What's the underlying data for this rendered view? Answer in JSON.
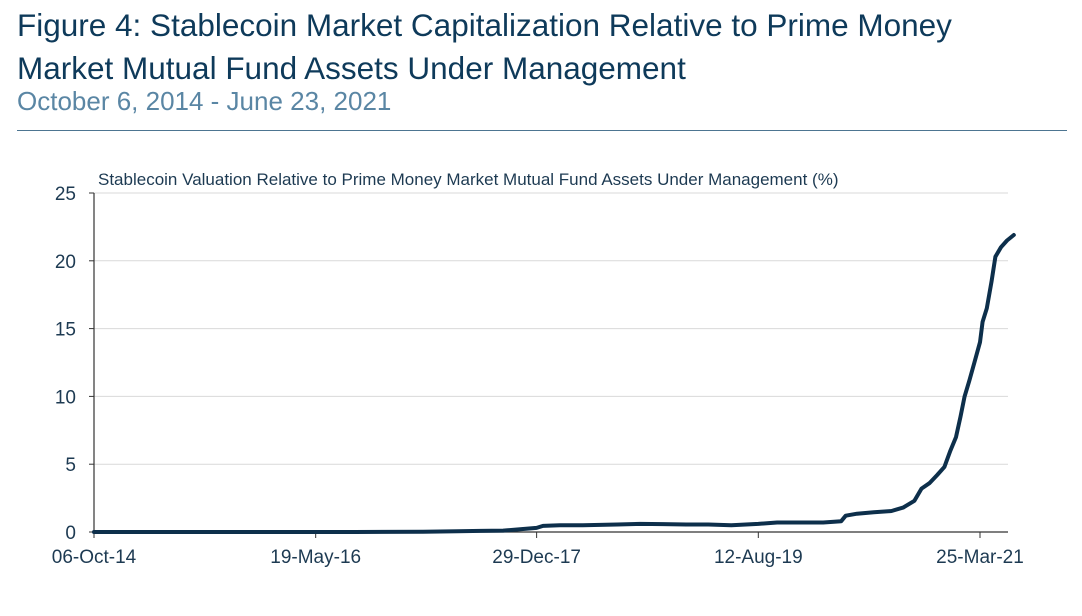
{
  "figure": {
    "title_line1": "Figure 4:  Stablecoin Market Capitalization Relative to Prime Money",
    "title_line2": "Market Mutual Fund Assets Under Management",
    "subtitle": "October 6, 2014 - June 23, 2021"
  },
  "colors": {
    "title": "#0e3a5a",
    "subtitle": "#5a86a4",
    "line": "#0d2f4b",
    "grid": "#d9d9d9"
  },
  "chart_data": {
    "type": "line",
    "title": "Stablecoin Valuation Relative to Prime Money Market Mutual Fund Assets Under Management (%)",
    "x_range": [
      "2014-10-06",
      "2021-06-23"
    ],
    "x_ticks": [
      "06-Oct-14",
      "19-May-16",
      "29-Dec-17",
      "12-Aug-19",
      "25-Mar-21"
    ],
    "x_tick_dates": [
      "2014-10-06",
      "2016-05-19",
      "2017-12-29",
      "2019-08-12",
      "2021-03-25"
    ],
    "ylim": [
      0,
      25
    ],
    "y_ticks": [
      0,
      5,
      10,
      15,
      20,
      25
    ],
    "grid": "horizontal",
    "series": [
      {
        "points": [
          [
            "2014-10-06",
            0.0
          ],
          [
            "2015-06-01",
            0.0
          ],
          [
            "2016-01-01",
            0.0
          ],
          [
            "2016-09-01",
            0.0
          ],
          [
            "2017-03-01",
            0.02
          ],
          [
            "2017-06-01",
            0.05
          ],
          [
            "2017-08-01",
            0.08
          ],
          [
            "2017-10-01",
            0.1
          ],
          [
            "2017-11-15",
            0.2
          ],
          [
            "2017-12-29",
            0.3
          ],
          [
            "2018-01-15",
            0.45
          ],
          [
            "2018-03-01",
            0.5
          ],
          [
            "2018-05-01",
            0.5
          ],
          [
            "2018-08-01",
            0.55
          ],
          [
            "2018-10-01",
            0.6
          ],
          [
            "2018-12-01",
            0.58
          ],
          [
            "2019-02-01",
            0.55
          ],
          [
            "2019-04-01",
            0.55
          ],
          [
            "2019-06-01",
            0.5
          ],
          [
            "2019-08-12",
            0.6
          ],
          [
            "2019-10-01",
            0.7
          ],
          [
            "2019-12-01",
            0.7
          ],
          [
            "2020-02-01",
            0.7
          ],
          [
            "2020-03-01",
            0.75
          ],
          [
            "2020-03-20",
            0.8
          ],
          [
            "2020-04-01",
            1.2
          ],
          [
            "2020-05-01",
            1.35
          ],
          [
            "2020-06-15",
            1.45
          ],
          [
            "2020-08-01",
            1.55
          ],
          [
            "2020-09-01",
            1.8
          ],
          [
            "2020-10-01",
            2.3
          ],
          [
            "2020-10-20",
            3.2
          ],
          [
            "2020-11-10",
            3.6
          ],
          [
            "2020-12-01",
            4.2
          ],
          [
            "2020-12-20",
            4.8
          ],
          [
            "2021-01-05",
            6.0
          ],
          [
            "2021-01-20",
            7.0
          ],
          [
            "2021-02-01",
            8.5
          ],
          [
            "2021-02-12",
            10.0
          ],
          [
            "2021-02-25",
            11.2
          ],
          [
            "2021-03-10",
            12.5
          ],
          [
            "2021-03-25",
            14.0
          ],
          [
            "2021-04-01",
            15.5
          ],
          [
            "2021-04-12",
            16.5
          ],
          [
            "2021-04-25",
            18.5
          ],
          [
            "2021-05-05",
            20.3
          ],
          [
            "2021-05-20",
            21.0
          ],
          [
            "2021-06-05",
            21.5
          ],
          [
            "2021-06-23",
            21.9
          ]
        ]
      }
    ]
  }
}
